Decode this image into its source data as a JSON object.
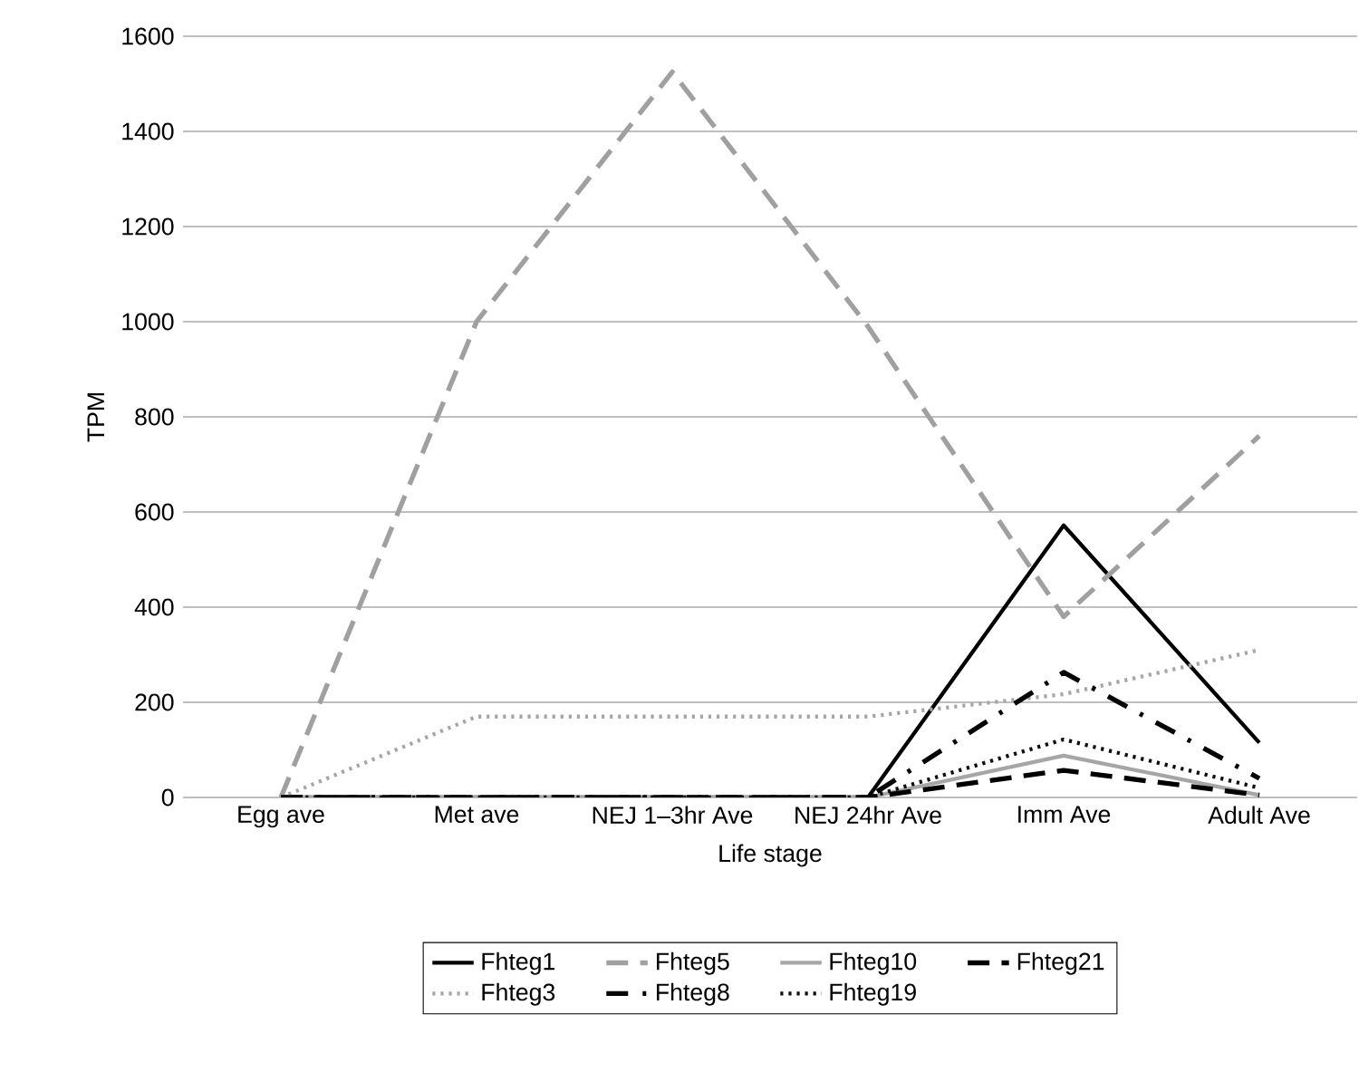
{
  "chart_data": {
    "type": "line",
    "xlabel": "Life stage",
    "ylabel": "TPM",
    "categories": [
      "Egg ave",
      "Met ave",
      "NEJ 1–3hr Ave",
      "NEJ 24hr Ave",
      "Imm Ave",
      "Adult Ave"
    ],
    "ylim": [
      0,
      1600
    ],
    "yticks": [
      0,
      200,
      400,
      600,
      800,
      1000,
      1200,
      1400,
      1600
    ],
    "grid": "y",
    "legend": "bottom",
    "marker": "none",
    "series": [
      {
        "name": "Fhteg1",
        "color": "#000000",
        "line_style": "solid",
        "values": [
          0,
          0,
          0,
          0,
          572,
          115
        ]
      },
      {
        "name": "Fhteg5",
        "color": "#a0a0a0",
        "line_style": "dashed",
        "values": [
          0,
          1000,
          1525,
          990,
          380,
          760
        ]
      },
      {
        "name": "Fhteg10",
        "color": "#a6a6a6",
        "line_style": "solid",
        "values": [
          0,
          0,
          0,
          0,
          88,
          5
        ]
      },
      {
        "name": "Fhteg21",
        "color": "#000000",
        "line_style": "dashed",
        "values": [
          0,
          0,
          0,
          0,
          57,
          5
        ]
      },
      {
        "name": "Fhteg3",
        "color": "#a6a6a6",
        "line_style": "dotted",
        "values": [
          0,
          170,
          170,
          170,
          217,
          310
        ]
      },
      {
        "name": "Fhteg8",
        "color": "#060606",
        "line_style": "dashdot",
        "values": [
          0,
          0,
          0,
          0,
          263,
          40
        ]
      },
      {
        "name": "Fhteg19",
        "color": "#0d0d0d",
        "line_style": "dotted",
        "values": [
          0,
          0,
          0,
          0,
          122,
          20
        ]
      }
    ]
  }
}
